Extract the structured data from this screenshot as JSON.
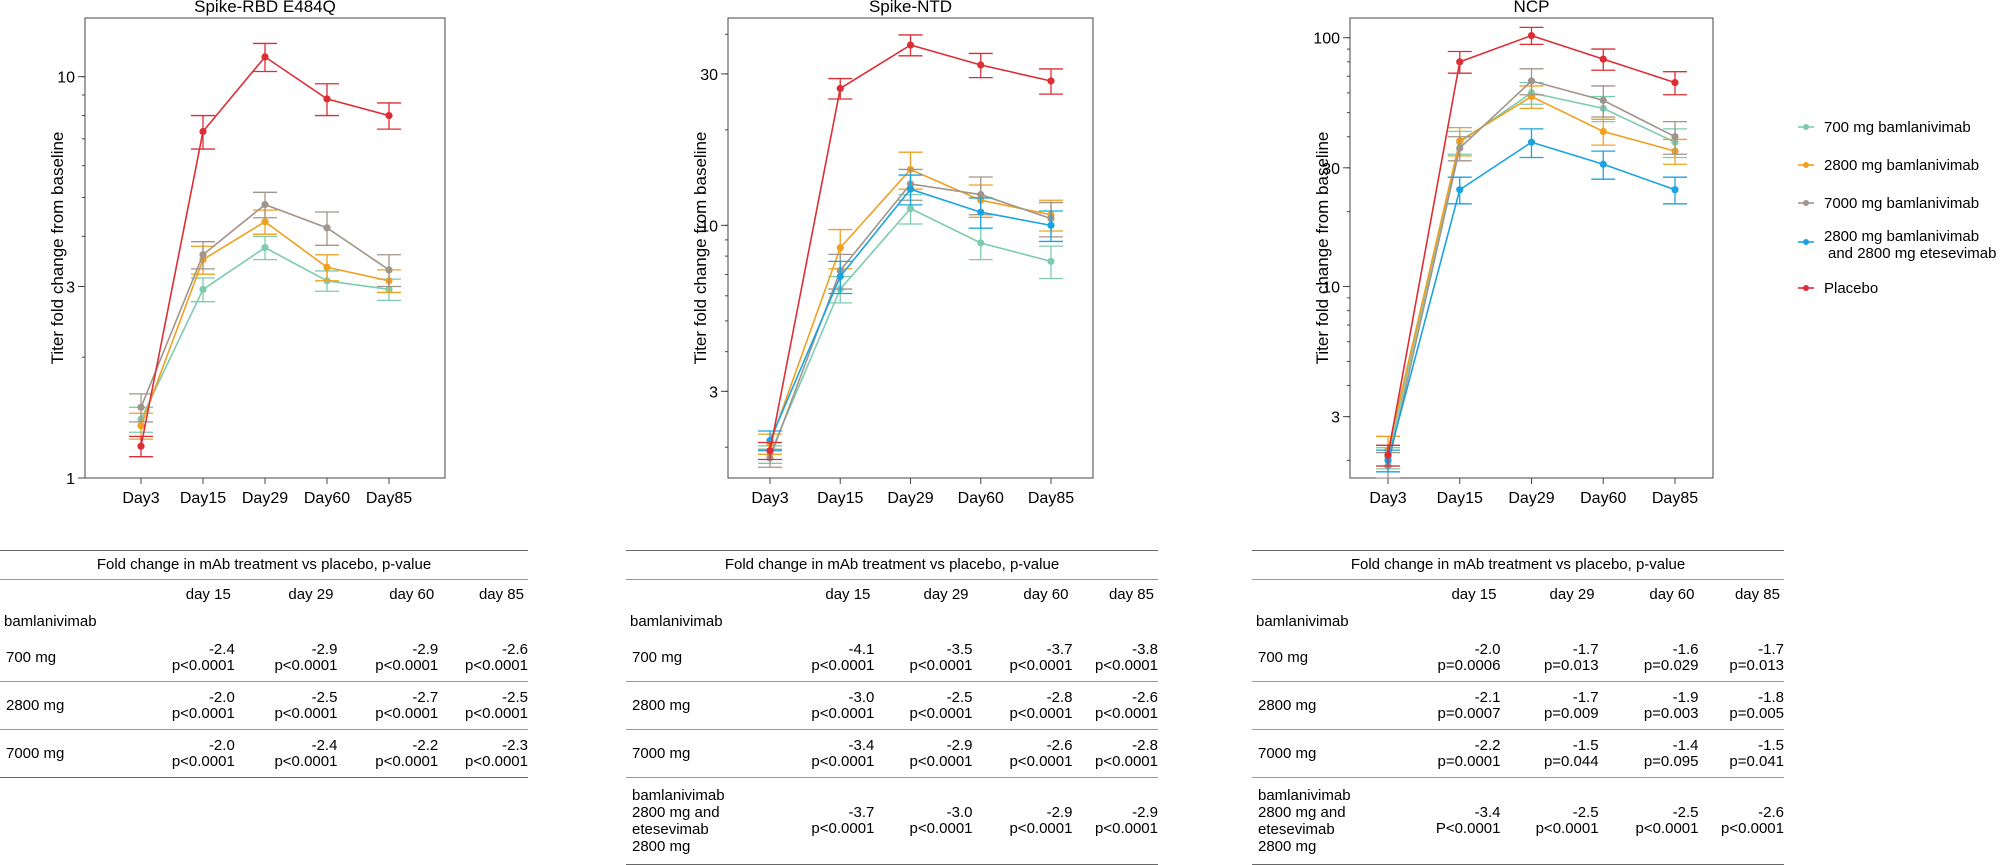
{
  "legend": [
    {
      "label": "700 mg bamlanivimab",
      "color": "#7ecbb0"
    },
    {
      "label": "2800 mg bamlanivimab",
      "color": "#f0a020"
    },
    {
      "label": "7000 mg bamlanivimab",
      "color": "#a0958a"
    },
    {
      "label_line1": "2800 mg bamlanivimab",
      "label_line2": "and 2800 mg etesevimab",
      "color": "#1aa3e0"
    },
    {
      "label": "Placebo",
      "color": "#dc2e35"
    }
  ],
  "chart_data": [
    {
      "type": "line",
      "title": "Spike-RBD E484Q",
      "ylabel": "Titer fold change from baseline",
      "xlabel": "",
      "yscale": "log",
      "ylim": [
        1,
        14
      ],
      "categories": [
        "Day3",
        "Day15",
        "Day29",
        "Day60",
        "Day85"
      ],
      "yticks": [
        {
          "value": 1,
          "label": "1"
        },
        {
          "value": 3,
          "label": "3"
        },
        {
          "value": 10,
          "label": "10"
        }
      ],
      "series": [
        {
          "name": "700 mg bamlanivimab",
          "color": "#7ecbb0",
          "values": [
            1.4,
            2.95,
            3.75,
            3.1,
            2.95
          ],
          "err": [
            0.1,
            0.2,
            0.25,
            0.18,
            0.18
          ]
        },
        {
          "name": "2800 mg bamlanivimab",
          "color": "#f0a020",
          "values": [
            1.35,
            3.5,
            4.35,
            3.35,
            3.1
          ],
          "err": [
            0.1,
            0.28,
            0.3,
            0.25,
            0.2
          ]
        },
        {
          "name": "7000 mg bamlanivimab",
          "color": "#a0958a",
          "values": [
            1.5,
            3.6,
            4.8,
            4.2,
            3.3
          ],
          "err": [
            0.12,
            0.28,
            0.35,
            0.4,
            0.3
          ]
        },
        {
          "name": "Placebo",
          "color": "#dc2e35",
          "values": [
            1.2,
            7.3,
            11.2,
            8.8,
            8.0
          ],
          "err": [
            0.07,
            0.7,
            0.9,
            0.8,
            0.6
          ]
        }
      ]
    },
    {
      "type": "line",
      "title": "Spike-NTD",
      "ylabel": "Titer fold change from baseline",
      "xlabel": "",
      "yscale": "log",
      "ylim": [
        1.6,
        45
      ],
      "categories": [
        "Day3",
        "Day15",
        "Day29",
        "Day60",
        "Day85"
      ],
      "yticks": [
        {
          "value": 3,
          "label": "3"
        },
        {
          "value": 10,
          "label": "10"
        },
        {
          "value": 30,
          "label": "30"
        }
      ],
      "series": [
        {
          "name": "700 mg bamlanivimab",
          "color": "#7ecbb0",
          "values": [
            1.9,
            6.3,
            11.3,
            8.8,
            7.7
          ],
          "err": [
            0.12,
            0.6,
            1.2,
            1.0,
            0.9
          ]
        },
        {
          "name": "2800 mg bamlanivimab",
          "color": "#f0a020",
          "values": [
            2.05,
            8.5,
            15.0,
            12.0,
            10.8
          ],
          "err": [
            0.15,
            1.2,
            2.0,
            1.4,
            1.2
          ]
        },
        {
          "name": "7000 mg bamlanivimab",
          "color": "#a0958a",
          "values": [
            1.85,
            7.2,
            13.5,
            12.5,
            10.5
          ],
          "err": [
            0.12,
            0.9,
            1.5,
            1.7,
            1.3
          ]
        },
        {
          "name": "2800 mg bamlanivimab and 2800 mg etesevimab",
          "color": "#1aa3e0",
          "values": [
            2.1,
            6.9,
            13.0,
            11.0,
            10.0
          ],
          "err": [
            0.15,
            0.8,
            1.4,
            1.2,
            1.1
          ]
        },
        {
          "name": "Placebo",
          "color": "#dc2e35",
          "values": [
            1.95,
            27.0,
            37.0,
            32.0,
            28.5
          ],
          "err": [
            0.12,
            2.0,
            2.8,
            2.8,
            2.6
          ]
        }
      ]
    },
    {
      "type": "line",
      "title": "NCP",
      "ylabel": "Titer fold change from baseline",
      "xlabel": "",
      "yscale": "log",
      "ylim": [
        1.7,
        120
      ],
      "categories": [
        "Day3",
        "Day15",
        "Day29",
        "Day60",
        "Day85"
      ],
      "yticks": [
        {
          "value": 3,
          "label": "3"
        },
        {
          "value": 10,
          "label": "10"
        },
        {
          "value": 30,
          "label": "30"
        },
        {
          "value": 100,
          "label": "100"
        }
      ],
      "series": [
        {
          "name": "700 mg bamlanivimab",
          "color": "#7ecbb0",
          "values": [
            2.05,
            38.0,
            60.0,
            52.0,
            38.0
          ],
          "err": [
            0.2,
            4,
            6,
            6,
            5
          ]
        },
        {
          "name": "2800 mg bamlanivimab",
          "color": "#f0a020",
          "values": [
            2.2,
            38.5,
            58.0,
            42.0,
            35.0
          ],
          "err": [
            0.3,
            5,
            6,
            5,
            4
          ]
        },
        {
          "name": "7000 mg bamlanivimab",
          "color": "#a0958a",
          "values": [
            1.9,
            36.0,
            67.0,
            56.0,
            40.0
          ],
          "err": [
            0.25,
            4,
            8,
            8,
            6
          ]
        },
        {
          "name": "2800 mg bamlanivimab and 2800 mg etesevimab",
          "color": "#1aa3e0",
          "values": [
            2.0,
            24.5,
            38.0,
            31.0,
            24.5
          ],
          "err": [
            0.2,
            3,
            5,
            4,
            3
          ]
        },
        {
          "name": "Placebo",
          "color": "#dc2e35",
          "values": [
            2.1,
            80.0,
            102.0,
            82.0,
            66.0
          ],
          "err": [
            0.2,
            8,
            8,
            8,
            7
          ]
        }
      ]
    }
  ],
  "tables": [
    {
      "caption": "Fold change in mAb treatment vs placebo, p-value",
      "headers": [
        "day 15",
        "day 29",
        "day 60",
        "day 85"
      ],
      "group": "bamlanivimab",
      "rows": [
        {
          "label": "700 mg",
          "cells": [
            [
              "-2.4",
              "p<0.0001"
            ],
            [
              "-2.9",
              "p<0.0001"
            ],
            [
              "-2.9",
              "p<0.0001"
            ],
            [
              "-2.6",
              "p<0.0001"
            ]
          ]
        },
        {
          "label": "2800 mg",
          "cells": [
            [
              "-2.0",
              "p<0.0001"
            ],
            [
              "-2.5",
              "p<0.0001"
            ],
            [
              "-2.7",
              "p<0.0001"
            ],
            [
              "-2.5",
              "p<0.0001"
            ]
          ]
        },
        {
          "label": "7000 mg",
          "cells": [
            [
              "-2.0",
              "p<0.0001"
            ],
            [
              "-2.4",
              "p<0.0001"
            ],
            [
              "-2.2",
              "p<0.0001"
            ],
            [
              "-2.3",
              "p<0.0001"
            ]
          ]
        }
      ]
    },
    {
      "caption": "Fold change in mAb treatment vs placebo, p-value",
      "headers": [
        "day 15",
        "day 29",
        "day 60",
        "day 85"
      ],
      "group": "bamlanivimab",
      "rows": [
        {
          "label": "700 mg",
          "cells": [
            [
              "-4.1",
              "p<0.0001"
            ],
            [
              "-3.5",
              "p<0.0001"
            ],
            [
              "-3.7",
              "p<0.0001"
            ],
            [
              "-3.8",
              "p<0.0001"
            ]
          ]
        },
        {
          "label": "2800 mg",
          "cells": [
            [
              "-3.0",
              "p<0.0001"
            ],
            [
              "-2.5",
              "p<0.0001"
            ],
            [
              "-2.8",
              "p<0.0001"
            ],
            [
              "-2.6",
              "p<0.0001"
            ]
          ]
        },
        {
          "label": "7000 mg",
          "cells": [
            [
              "-3.4",
              "p<0.0001"
            ],
            [
              "-2.9",
              "p<0.0001"
            ],
            [
              "-2.6",
              "p<0.0001"
            ],
            [
              "-2.8",
              "p<0.0001"
            ]
          ]
        },
        {
          "label_lines": [
            "bamlanivimab",
            "2800 mg and",
            "etesevimab",
            "2800 mg"
          ],
          "cells": [
            [
              "-3.7",
              "p<0.0001"
            ],
            [
              "-3.0",
              "p<0.0001"
            ],
            [
              "-2.9",
              "p<0.0001"
            ],
            [
              "-2.9",
              "p<0.0001"
            ]
          ]
        }
      ]
    },
    {
      "caption": "Fold change in mAb treatment vs placebo, p-value",
      "headers": [
        "day 15",
        "day 29",
        "day 60",
        "day 85"
      ],
      "group": "bamlanivimab",
      "rows": [
        {
          "label": "700 mg",
          "cells": [
            [
              "-2.0",
              "p=0.0006"
            ],
            [
              "-1.7",
              "p=0.013"
            ],
            [
              "-1.6",
              "p=0.029"
            ],
            [
              "-1.7",
              "p=0.013"
            ]
          ]
        },
        {
          "label": "2800 mg",
          "cells": [
            [
              "-2.1",
              "p=0.0007"
            ],
            [
              "-1.7",
              "p=0.009"
            ],
            [
              "-1.9",
              "p=0.003"
            ],
            [
              "-1.8",
              "p=0.005"
            ]
          ]
        },
        {
          "label": "7000 mg",
          "cells": [
            [
              "-2.2",
              "p=0.0001"
            ],
            [
              "-1.5",
              "p=0.044"
            ],
            [
              "-1.4",
              "p=0.095"
            ],
            [
              "-1.5",
              "p=0.041"
            ]
          ]
        },
        {
          "label_lines": [
            "bamlanivimab",
            "2800 mg and",
            "etesevimab",
            "2800 mg"
          ],
          "cells": [
            [
              "-3.4",
              "P<0.0001"
            ],
            [
              "-2.5",
              "p<0.0001"
            ],
            [
              "-2.5",
              "p<0.0001"
            ],
            [
              "-2.6",
              "p<0.0001"
            ]
          ]
        }
      ]
    }
  ]
}
